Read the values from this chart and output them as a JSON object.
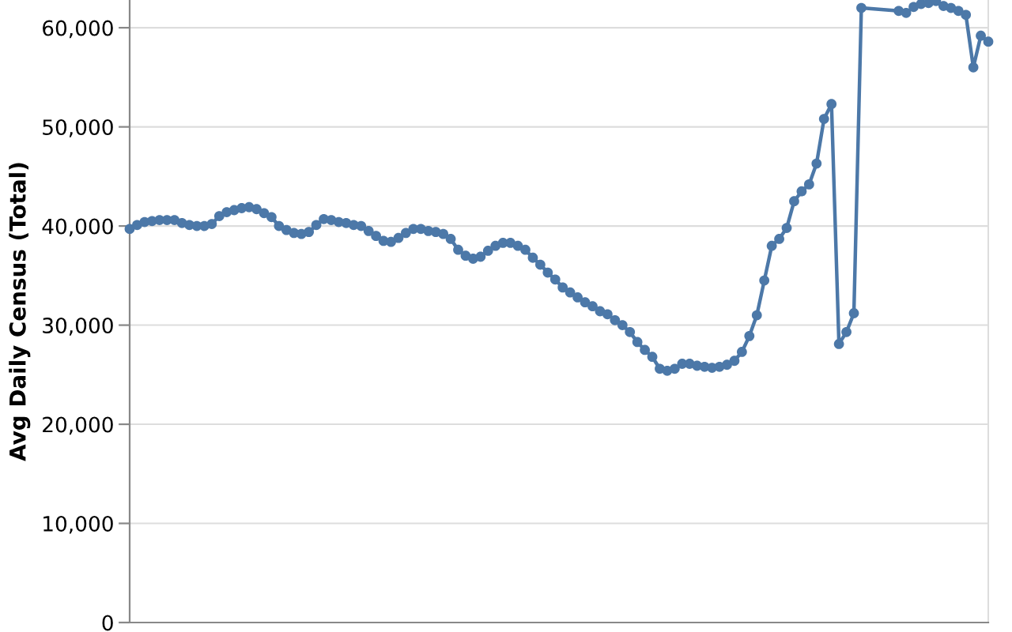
{
  "chart_data": {
    "type": "line",
    "ylabel": "Avg Daily Census (Total)",
    "categories": [
      null,
      null,
      null,
      null,
      null,
      null,
      null,
      null,
      null,
      null,
      null,
      null,
      null,
      null,
      null,
      null,
      null,
      null,
      null,
      null,
      null,
      null,
      null,
      null,
      null,
      null,
      null,
      null,
      null,
      null,
      null,
      null,
      null,
      null,
      null,
      null,
      null,
      null,
      null,
      null,
      null,
      null,
      null,
      null,
      null,
      null,
      null,
      null,
      null,
      null,
      null,
      null,
      null,
      null,
      null,
      null,
      null,
      null,
      null,
      null,
      null,
      null,
      null,
      null,
      null,
      null,
      null,
      null,
      null,
      null,
      null,
      null,
      null,
      null,
      null,
      null,
      null,
      null,
      null,
      null,
      null,
      null,
      null,
      null,
      null,
      null,
      null,
      null,
      null,
      null,
      null,
      null,
      null,
      null,
      null,
      null,
      null,
      null,
      null,
      null,
      null,
      null,
      null,
      null,
      null,
      null,
      null,
      null,
      null,
      null,
      null,
      null,
      null,
      null,
      null,
      null
    ],
    "values": [
      39700,
      40100,
      40400,
      40500,
      40600,
      40600,
      40600,
      40300,
      40100,
      40000,
      40000,
      40200,
      41000,
      41400,
      41600,
      41800,
      41900,
      41700,
      41300,
      40900,
      40000,
      39600,
      39300,
      39200,
      39400,
      40100,
      40700,
      40600,
      40400,
      40300,
      40100,
      40000,
      39500,
      39000,
      38500,
      38400,
      38800,
      39300,
      39700,
      39700,
      39500,
      39400,
      39200,
      38700,
      37600,
      37000,
      36700,
      36900,
      37500,
      38000,
      38300,
      38300,
      38000,
      37600,
      36800,
      36100,
      35300,
      34600,
      33800,
      33300,
      32800,
      32300,
      31900,
      31400,
      31100,
      30500,
      30000,
      29300,
      28300,
      27500,
      26800,
      25600,
      25400,
      25600,
      26100,
      26100,
      25900,
      25800,
      25700,
      25800,
      26000,
      26400,
      27300,
      28900,
      31000,
      34500,
      38000,
      38700,
      39800,
      42500,
      43500,
      44200,
      46300,
      50800,
      52300,
      28100,
      29300,
      31200,
      62000,
      null,
      null,
      null,
      null,
      61700,
      61500,
      62100,
      62400,
      62500,
      62700,
      62200,
      62000,
      61700,
      61300,
      56000,
      59200,
      58600
    ],
    "color": "#4c78a8",
    "marker": "circle",
    "line_style": "solid",
    "ylim": [
      0,
      62800
    ],
    "yticks": [
      {
        "value": 0,
        "label": "0"
      },
      {
        "value": 10000,
        "label": "10,000"
      },
      {
        "value": 20000,
        "label": "20,000"
      },
      {
        "value": 30000,
        "label": "30,000"
      },
      {
        "value": 40000,
        "label": "40,000"
      },
      {
        "value": 50000,
        "label": "50,000"
      },
      {
        "value": 60000,
        "label": "60,000"
      }
    ],
    "grid": "y"
  }
}
